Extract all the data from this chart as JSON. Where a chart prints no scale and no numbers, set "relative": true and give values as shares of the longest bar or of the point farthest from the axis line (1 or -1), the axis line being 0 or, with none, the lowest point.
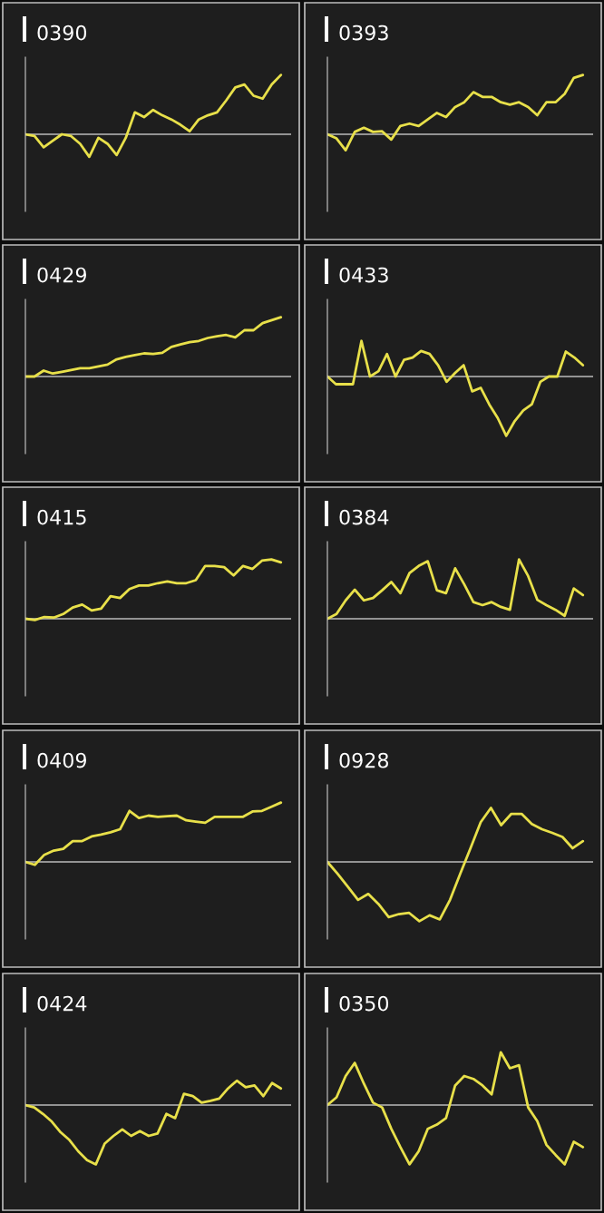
{
  "chart_data": [
    {
      "type": "line",
      "title": "0390",
      "relative": true,
      "categories": [
        null,
        null,
        null,
        null,
        null,
        null,
        null,
        null,
        null,
        null,
        null,
        null,
        null,
        null,
        null,
        null,
        null,
        null,
        null,
        null,
        null,
        null,
        null,
        null,
        null,
        null,
        null,
        null,
        null
      ],
      "series": [
        {
          "color": "#e8e04a",
          "values": [
            0,
            -0.03,
            -0.22,
            -0.11,
            0,
            -0.03,
            -0.16,
            -0.38,
            -0.06,
            -0.16,
            -0.35,
            -0.06,
            0.37,
            0.29,
            0.41,
            0.32,
            0.25,
            0.16,
            0.05,
            0.25,
            0.32,
            0.37,
            0.57,
            0.79,
            0.84,
            0.65,
            0.6,
            0.84,
            1.0
          ]
        }
      ]
    },
    {
      "type": "line",
      "title": "0393",
      "relative": true,
      "categories": [
        null,
        null,
        null,
        null,
        null,
        null,
        null,
        null,
        null,
        null,
        null,
        null,
        null,
        null,
        null,
        null,
        null,
        null,
        null,
        null,
        null,
        null,
        null,
        null,
        null,
        null,
        null,
        null,
        null
      ],
      "series": [
        {
          "color": "#e8e04a",
          "values": [
            0,
            -0.07,
            -0.27,
            0.04,
            0.11,
            0.04,
            0.05,
            -0.09,
            0.14,
            0.18,
            0.14,
            0.25,
            0.36,
            0.29,
            0.46,
            0.54,
            0.71,
            0.63,
            0.63,
            0.54,
            0.5,
            0.54,
            0.46,
            0.32,
            0.54,
            0.54,
            0.68,
            0.95,
            1.0
          ]
        }
      ]
    },
    {
      "type": "line",
      "title": "0429",
      "relative": true,
      "categories": [
        null,
        null,
        null,
        null,
        null,
        null,
        null,
        null,
        null,
        null,
        null,
        null,
        null,
        null,
        null,
        null,
        null,
        null,
        null,
        null,
        null,
        null,
        null,
        null,
        null,
        null,
        null,
        null,
        null
      ],
      "series": [
        {
          "color": "#e8e04a",
          "values": [
            0,
            0,
            0.1,
            0.05,
            0.08,
            0.11,
            0.14,
            0.14,
            0.17,
            0.2,
            0.29,
            0.33,
            0.36,
            0.39,
            0.38,
            0.4,
            0.5,
            0.54,
            0.58,
            0.6,
            0.65,
            0.68,
            0.7,
            0.66,
            0.78,
            0.78,
            0.9,
            0.95,
            1.0
          ]
        }
      ]
    },
    {
      "type": "line",
      "title": "0433",
      "relative": true,
      "categories": [
        null,
        null,
        null,
        null,
        null,
        null,
        null,
        null,
        null,
        null,
        null,
        null,
        null,
        null,
        null,
        null,
        null,
        null,
        null,
        null,
        null,
        null,
        null,
        null,
        null,
        null,
        null,
        null,
        null,
        null,
        null
      ],
      "series": [
        {
          "color": "#e8e04a",
          "values": [
            0,
            -0.13,
            -0.13,
            -0.13,
            0.6,
            0,
            0.09,
            0.38,
            0,
            0.28,
            0.32,
            0.43,
            0.38,
            0.19,
            -0.09,
            0.06,
            0.19,
            -0.25,
            -0.19,
            -0.47,
            -0.7,
            -1.0,
            -0.75,
            -0.57,
            -0.47,
            -0.09,
            0,
            0,
            0.42,
            0.32,
            0.19
          ]
        }
      ]
    },
    {
      "type": "line",
      "title": "0415",
      "relative": true,
      "categories": [
        null,
        null,
        null,
        null,
        null,
        null,
        null,
        null,
        null,
        null,
        null,
        null,
        null,
        null,
        null,
        null,
        null,
        null,
        null,
        null,
        null,
        null,
        null,
        null,
        null,
        null,
        null,
        null
      ],
      "series": [
        {
          "color": "#e8e04a",
          "values": [
            0,
            -0.02,
            0.03,
            0.02,
            0.08,
            0.19,
            0.24,
            0.14,
            0.17,
            0.38,
            0.35,
            0.5,
            0.56,
            0.56,
            0.6,
            0.63,
            0.6,
            0.6,
            0.65,
            0.89,
            0.89,
            0.87,
            0.73,
            0.89,
            0.84,
            0.98,
            1.0,
            0.95
          ]
        }
      ]
    },
    {
      "type": "line",
      "title": "0384",
      "relative": true,
      "categories": [
        null,
        null,
        null,
        null,
        null,
        null,
        null,
        null,
        null,
        null,
        null,
        null,
        null,
        null,
        null,
        null,
        null,
        null,
        null,
        null,
        null,
        null,
        null,
        null,
        null,
        null,
        null,
        null,
        null
      ],
      "series": [
        {
          "color": "#e8e04a",
          "values": [
            0,
            0.08,
            0.31,
            0.49,
            0.31,
            0.35,
            0.48,
            0.62,
            0.43,
            0.77,
            0.89,
            0.97,
            0.48,
            0.43,
            0.85,
            0.58,
            0.28,
            0.23,
            0.28,
            0.2,
            0.15,
            1.0,
            0.72,
            0.32,
            0.23,
            0.15,
            0.05,
            0.51,
            0.4
          ]
        }
      ]
    },
    {
      "type": "line",
      "title": "0409",
      "relative": true,
      "categories": [
        null,
        null,
        null,
        null,
        null,
        null,
        null,
        null,
        null,
        null,
        null,
        null,
        null,
        null,
        null,
        null,
        null,
        null,
        null,
        null,
        null,
        null,
        null,
        null,
        null,
        null,
        null,
        null
      ],
      "series": [
        {
          "color": "#e8e04a",
          "values": [
            0,
            -0.05,
            0.12,
            0.19,
            0.22,
            0.35,
            0.35,
            0.43,
            0.46,
            0.5,
            0.55,
            0.86,
            0.74,
            0.78,
            0.76,
            0.77,
            0.78,
            0.7,
            0.68,
            0.66,
            0.76,
            0.76,
            0.76,
            0.76,
            0.85,
            0.86,
            0.93,
            1.0
          ]
        }
      ]
    },
    {
      "type": "line",
      "title": "0928",
      "relative": true,
      "categories": [
        null,
        null,
        null,
        null,
        null,
        null,
        null,
        null,
        null,
        null,
        null,
        null,
        null,
        null,
        null,
        null,
        null,
        null,
        null,
        null,
        null,
        null,
        null,
        null,
        null,
        null
      ],
      "series": [
        {
          "color": "#e8e04a",
          "values": [
            0,
            -0.2,
            -0.42,
            -0.64,
            -0.54,
            -0.71,
            -0.93,
            -0.88,
            -0.86,
            -1.0,
            -0.9,
            -0.97,
            -0.64,
            -0.2,
            0.23,
            0.67,
            0.91,
            0.62,
            0.81,
            0.81,
            0.64,
            0.55,
            0.49,
            0.42,
            0.23,
            0.35
          ]
        }
      ]
    },
    {
      "type": "line",
      "title": "0424",
      "relative": true,
      "categories": [
        null,
        null,
        null,
        null,
        null,
        null,
        null,
        null,
        null,
        null,
        null,
        null,
        null,
        null,
        null,
        null,
        null,
        null,
        null,
        null,
        null,
        null,
        null,
        null,
        null,
        null,
        null,
        null,
        null,
        null
      ],
      "series": [
        {
          "color": "#e8e04a",
          "values": [
            0,
            -0.04,
            -0.15,
            -0.28,
            -0.46,
            -0.59,
            -0.78,
            -0.93,
            -1.0,
            -0.65,
            -0.52,
            -0.41,
            -0.52,
            -0.44,
            -0.52,
            -0.48,
            -0.15,
            -0.22,
            0.19,
            0.15,
            0.04,
            0.07,
            0.11,
            0.28,
            0.41,
            0.3,
            0.33,
            0.15,
            0.37,
            0.28
          ]
        }
      ]
    },
    {
      "type": "line",
      "title": "0350",
      "relative": true,
      "categories": [
        null,
        null,
        null,
        null,
        null,
        null,
        null,
        null,
        null,
        null,
        null,
        null,
        null,
        null,
        null,
        null,
        null,
        null,
        null,
        null,
        null,
        null,
        null,
        null,
        null,
        null,
        null,
        null,
        null
      ],
      "series": [
        {
          "color": "#e8e04a",
          "values": [
            0,
            0.13,
            0.49,
            0.71,
            0.36,
            0.04,
            -0.04,
            -0.4,
            -0.71,
            -1.0,
            -0.78,
            -0.4,
            -0.33,
            -0.22,
            0.33,
            0.49,
            0.44,
            0.33,
            0.18,
            0.89,
            0.62,
            0.67,
            -0.04,
            -0.27,
            -0.67,
            -0.84,
            -1.0,
            -0.62,
            -0.71
          ]
        }
      ]
    }
  ]
}
